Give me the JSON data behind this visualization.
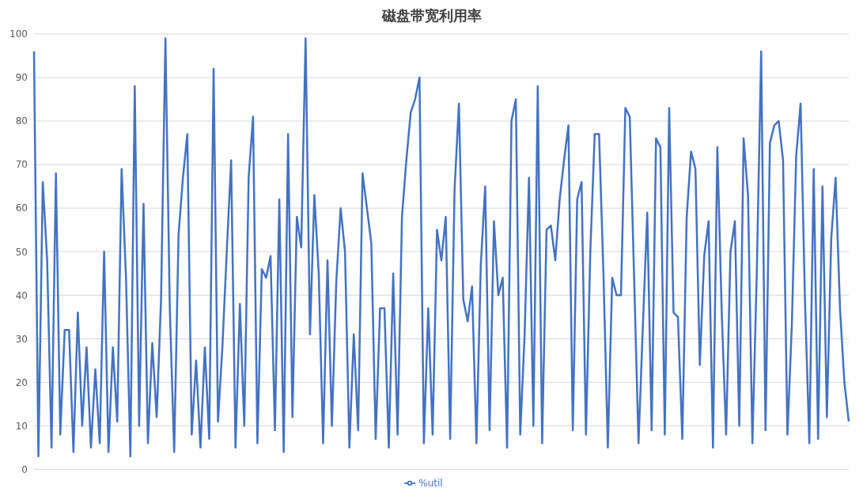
{
  "chart_data": {
    "type": "line",
    "title": "磁盘带宽利用率",
    "categories": [
      null,
      null,
      null,
      null,
      null,
      null,
      null,
      null,
      null,
      null,
      null,
      null,
      null,
      null,
      null,
      null,
      null,
      null,
      null,
      null,
      null,
      null,
      null,
      null,
      null,
      null,
      null,
      null,
      null,
      null,
      null,
      null,
      null,
      null,
      null,
      null,
      null,
      null,
      null,
      null,
      null,
      null,
      null,
      null,
      null,
      null,
      null,
      null,
      null,
      null,
      null,
      null,
      null,
      null,
      null,
      null,
      null,
      null,
      null,
      null,
      null,
      null,
      null,
      null,
      null,
      null,
      null,
      null,
      null,
      null,
      null,
      null,
      null,
      null,
      null,
      null,
      null,
      null,
      null,
      null,
      null,
      null,
      null,
      null,
      null,
      null,
      null,
      null,
      null,
      null,
      null,
      null,
      null,
      null,
      null,
      null,
      null,
      null,
      null,
      null,
      null,
      null,
      null,
      null,
      null,
      null,
      null,
      null,
      null,
      null,
      null,
      null,
      null,
      null,
      null,
      null,
      null,
      null,
      null,
      null,
      null,
      null,
      null,
      null,
      null,
      null,
      null,
      null,
      null,
      null,
      null,
      null,
      null,
      null,
      null,
      null,
      null,
      null,
      null,
      null,
      null,
      null,
      null,
      null,
      null,
      null,
      null,
      null,
      null,
      null,
      null,
      null,
      null,
      null,
      null,
      null,
      null,
      null,
      null,
      null,
      null,
      null,
      null,
      null,
      null,
      null,
      null,
      null,
      null,
      null,
      null,
      null,
      null,
      null,
      null,
      null,
      null,
      null,
      null,
      null,
      null,
      null,
      null,
      null,
      null,
      null,
      null
    ],
    "series": [
      {
        "name": "%util",
        "color": "#4472c4",
        "values": [
          96,
          3,
          66,
          48,
          5,
          68,
          8,
          32,
          32,
          4,
          36,
          10,
          28,
          5,
          23,
          6,
          50,
          4,
          28,
          11,
          69,
          44,
          3,
          88,
          10,
          61,
          6,
          29,
          12,
          39,
          99,
          37,
          4,
          54,
          67,
          77,
          8,
          25,
          5,
          28,
          7,
          92,
          11,
          28,
          50,
          71,
          5,
          38,
          10,
          67,
          81,
          6,
          46,
          44,
          49,
          9,
          62,
          4,
          77,
          12,
          58,
          51,
          99,
          31,
          63,
          45,
          6,
          48,
          10,
          43,
          60,
          50,
          5,
          31,
          9,
          68,
          60,
          52,
          7,
          37,
          37,
          5,
          45,
          8,
          58,
          71,
          82,
          85,
          90,
          6,
          37,
          8,
          55,
          48,
          58,
          7,
          64,
          84,
          39,
          34,
          42,
          6,
          47,
          65,
          9,
          57,
          40,
          44,
          5,
          80,
          85,
          8,
          31,
          67,
          10,
          88,
          6,
          55,
          56,
          48,
          62,
          71,
          79,
          9,
          62,
          66,
          8,
          50,
          77,
          77,
          45,
          5,
          44,
          40,
          40,
          83,
          81,
          44,
          6,
          33,
          59,
          9,
          76,
          74,
          8,
          83,
          36,
          35,
          7,
          58,
          73,
          69,
          24,
          49,
          57,
          5,
          74,
          36,
          8,
          50,
          57,
          10,
          76,
          63,
          6,
          45,
          96,
          9,
          75,
          79,
          80,
          71,
          8,
          33,
          72,
          84,
          39,
          6,
          69,
          7,
          65,
          12,
          53,
          67,
          37,
          20,
          11
        ]
      }
    ],
    "ylim": [
      0,
      100
    ],
    "yticks": [
      0,
      10,
      20,
      30,
      40,
      50,
      60,
      70,
      80,
      90,
      100
    ],
    "grid": "y",
    "legend": "bottom",
    "marker": "none",
    "line_style": "solid"
  }
}
